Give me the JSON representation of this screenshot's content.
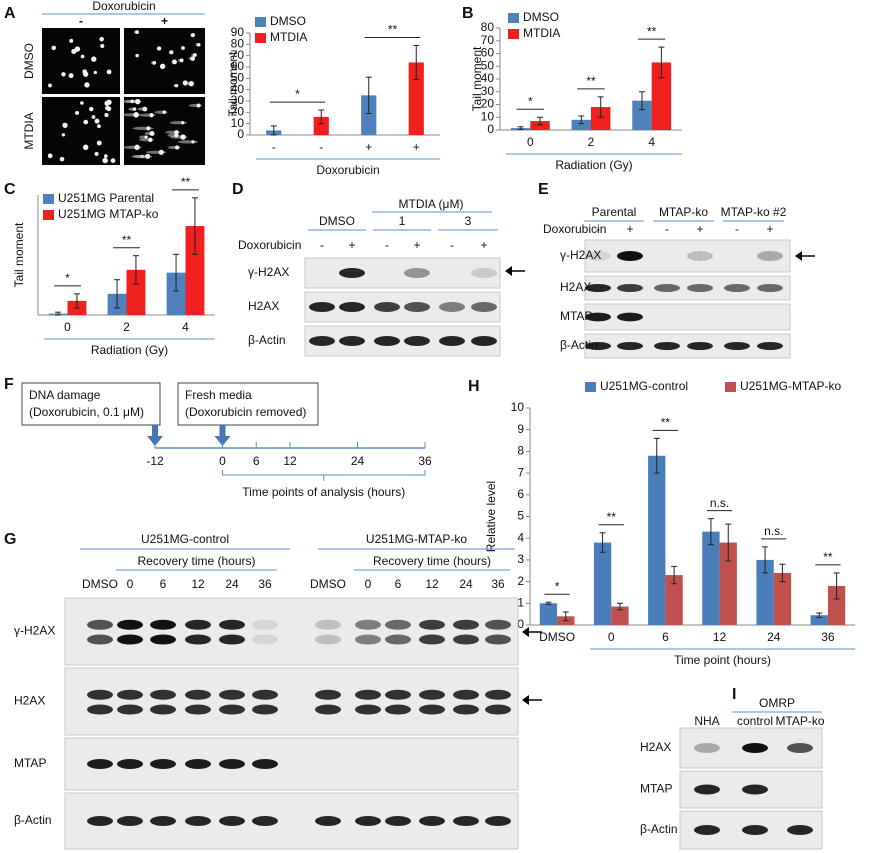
{
  "panel_a": {
    "label": "A",
    "treatment": "Doxorubicin",
    "columns": [
      "-",
      "+"
    ],
    "rows": [
      "DMSO",
      "MTDIA"
    ]
  },
  "chart_data": [
    {
      "type": "bar",
      "ylabel": "Tail moment",
      "xlabel": "Doxorubicin",
      "categories": [
        "-",
        "-",
        "+",
        "+"
      ],
      "series": [
        {
          "name": "DMSO",
          "color": "#4f81bd",
          "values": [
            4,
            null,
            35,
            null
          ],
          "errors": [
            4,
            null,
            16,
            null
          ]
        },
        {
          "name": "MTDIA",
          "color": "#f0201e",
          "values": [
            null,
            16,
            null,
            64
          ],
          "errors": [
            null,
            6,
            null,
            15
          ]
        }
      ],
      "ylim": [
        0,
        90
      ],
      "yticks": [
        0,
        10,
        20,
        30,
        40,
        50,
        60,
        70,
        80,
        90
      ],
      "annotations": [
        "*",
        "**"
      ],
      "legend": "upper left"
    },
    {
      "type": "bar",
      "panel": "B",
      "ylabel": "Tail moment",
      "xlabel": "Radiation (Gy)",
      "categories": [
        "0",
        "2",
        "4"
      ],
      "series": [
        {
          "name": "DMSO",
          "color": "#4f81bd",
          "values": [
            1.5,
            8,
            23
          ],
          "errors": [
            1,
            3,
            7
          ]
        },
        {
          "name": "MTDIA",
          "color": "#f0201e",
          "values": [
            7,
            18,
            53
          ],
          "errors": [
            3,
            8,
            12
          ]
        }
      ],
      "ylim": [
        0,
        80
      ],
      "yticks": [
        0,
        10,
        20,
        30,
        40,
        50,
        60,
        70,
        80
      ],
      "annotations": [
        "*",
        "**",
        "**"
      ],
      "legend": "upper left"
    },
    {
      "type": "bar",
      "panel": "C",
      "ylabel": "Tail moment",
      "xlabel": "Radiation (Gy)",
      "categories": [
        "0",
        "2",
        "4"
      ],
      "series": [
        {
          "name": "U251MG Parental",
          "color": "#4f81bd",
          "values": [
            1,
            15,
            30
          ],
          "errors": [
            1,
            10,
            13
          ]
        },
        {
          "name": "U251MG MTAP-ko",
          "color": "#f0201e",
          "values": [
            10,
            32,
            63
          ],
          "errors": [
            5,
            10,
            20
          ]
        }
      ],
      "ylim": [
        0,
        85
      ],
      "annotations": [
        "*",
        "**",
        "**"
      ],
      "legend": "upper left"
    },
    {
      "type": "bar",
      "panel": "H",
      "ylabel": "Relative level",
      "xlabel": "Time point (hours)",
      "categories": [
        "DMSO",
        "0",
        "6",
        "12",
        "24",
        "36"
      ],
      "series": [
        {
          "name": "U251MG-control",
          "color": "#4a7ebb",
          "values": [
            1.0,
            3.8,
            7.8,
            4.3,
            3.0,
            0.45
          ],
          "errors": [
            0.05,
            0.45,
            0.8,
            0.6,
            0.6,
            0.1
          ]
        },
        {
          "name": "U251MG-MTAP-ko",
          "color": "#c0504d",
          "values": [
            0.4,
            0.85,
            2.3,
            3.8,
            2.4,
            1.8
          ],
          "errors": [
            0.2,
            0.15,
            0.4,
            0.85,
            0.4,
            0.6
          ]
        }
      ],
      "ylim": [
        0,
        10
      ],
      "yticks": [
        0,
        1,
        2,
        3,
        4,
        5,
        6,
        7,
        8,
        9,
        10
      ],
      "annotations": [
        "*",
        "**",
        "**",
        "n.s.",
        "n.s.",
        "**"
      ],
      "legend": "top"
    }
  ],
  "panel_d": {
    "label": "D",
    "group_header": "MTDIA (μM)",
    "groups": [
      "DMSO",
      "1",
      "3"
    ],
    "treatment": "Doxorubicin",
    "lanes": [
      "-",
      "+",
      "-",
      "+",
      "-",
      "+"
    ],
    "rows": [
      "γ-H2AX",
      "H2AX",
      "β-Actin"
    ]
  },
  "panel_e": {
    "label": "E",
    "groups": [
      "Parental",
      "MTAP-ko",
      "MTAP-ko #2"
    ],
    "treatment": "Doxorubicin",
    "lanes": [
      "-",
      "+",
      "-",
      "+",
      "-",
      "+"
    ],
    "rows": [
      "γ-H2AX",
      "H2AX",
      "MTAP",
      "β-Actin"
    ]
  },
  "panel_f": {
    "label": "F",
    "boxes": [
      [
        "DNA damage",
        "(Doxorubicin, 0.1 μM)"
      ],
      [
        "Fresh media",
        "(Doxorubicin removed)"
      ]
    ],
    "ticks": [
      -12,
      0,
      6,
      12,
      24,
      36
    ],
    "range_label": "Time points of analysis (hours)"
  },
  "panel_g": {
    "label": "G",
    "groups": [
      {
        "name": "U251MG-control",
        "subheader": "Recovery time (hours)",
        "lanes": [
          "DMSO",
          "0",
          "6",
          "12",
          "24",
          "36"
        ]
      },
      {
        "name": "U251MG-MTAP-ko",
        "subheader": "Recovery time (hours)",
        "lanes": [
          "DMSO",
          "0",
          "6",
          "12",
          "24",
          "36"
        ]
      }
    ],
    "rows": [
      "γ-H2AX",
      "H2AX",
      "MTAP",
      "β-Actin"
    ]
  },
  "panel_i": {
    "label": "I",
    "group": "OMRP",
    "lanes": [
      "NHA",
      "control",
      "MTAP-ko"
    ],
    "rows": [
      "H2AX",
      "MTAP",
      "β-Actin"
    ]
  }
}
